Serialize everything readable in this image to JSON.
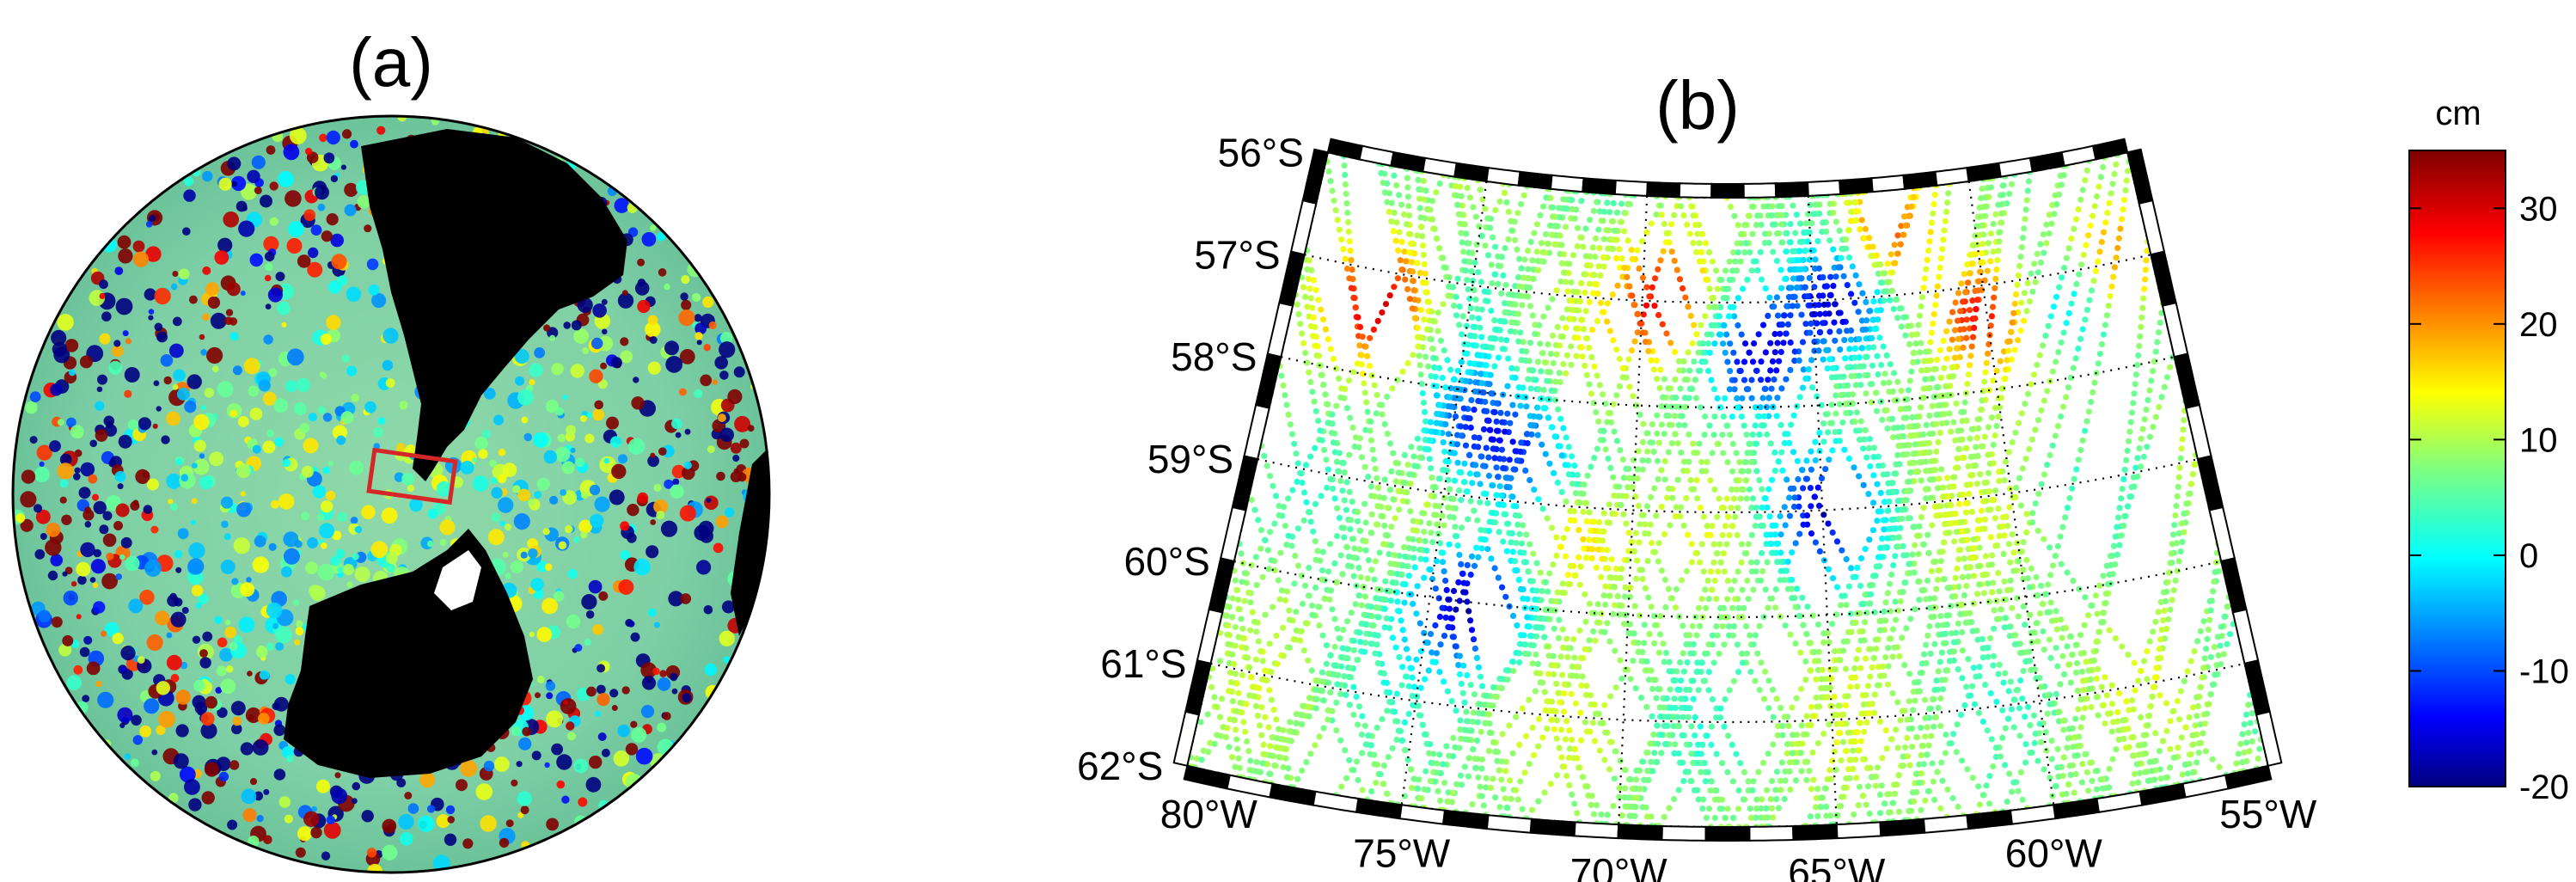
{
  "panels": {
    "a": {
      "label": "(a)"
    },
    "b": {
      "label": "(b)"
    }
  },
  "map_b": {
    "lon_range": [
      -80,
      -55
    ],
    "lat_range": [
      -62,
      -56
    ],
    "lon_ticks": [
      {
        "value": -80,
        "label": "80°W"
      },
      {
        "value": -75,
        "label": "75°W"
      },
      {
        "value": -70,
        "label": "70°W"
      },
      {
        "value": -65,
        "label": "65°W"
      },
      {
        "value": -60,
        "label": "60°W"
      },
      {
        "value": -55,
        "label": "55°W"
      }
    ],
    "lat_ticks": [
      {
        "value": -56,
        "label": "56°S"
      },
      {
        "value": -57,
        "label": "57°S"
      },
      {
        "value": -58,
        "label": "58°S"
      },
      {
        "value": -59,
        "label": "59°S"
      },
      {
        "value": -60,
        "label": "60°S"
      },
      {
        "value": -61,
        "label": "61°S"
      },
      {
        "value": -62,
        "label": "62°S"
      }
    ],
    "gridlines": "dotted",
    "colormap": "jet"
  },
  "colorbar": {
    "unit": "cm",
    "range": [
      -20,
      35
    ],
    "ticks": [
      {
        "value": 30,
        "label": "30"
      },
      {
        "value": 20,
        "label": "20"
      },
      {
        "value": 10,
        "label": "10"
      },
      {
        "value": 0,
        "label": "0"
      },
      {
        "value": -10,
        "label": "-10"
      },
      {
        "value": -20,
        "label": "-20"
      }
    ]
  },
  "anomaly_features": [
    {
      "lon": -77.5,
      "lat": -57.3,
      "value": 28
    },
    {
      "lon": -74.5,
      "lat": -58.3,
      "value": -8
    },
    {
      "lon": -73.0,
      "lat": -58.6,
      "value": -6
    },
    {
      "lon": -74.0,
      "lat": -60.0,
      "value": -18
    },
    {
      "lon": -71.5,
      "lat": -59.3,
      "value": 20
    },
    {
      "lon": -69.3,
      "lat": -57.0,
      "value": 30
    },
    {
      "lon": -66.5,
      "lat": -57.5,
      "value": -14
    },
    {
      "lon": -64.3,
      "lat": -57.0,
      "value": -19
    },
    {
      "lon": -65.0,
      "lat": -59.0,
      "value": -12
    },
    {
      "lon": -62.8,
      "lat": -56.4,
      "value": 24
    },
    {
      "lon": -60.3,
      "lat": -57.3,
      "value": 30
    },
    {
      "lon": -56.0,
      "lat": -57.0,
      "value": 22
    },
    {
      "lon": -57.5,
      "lat": -57.3,
      "value": -6
    },
    {
      "lon": -77.0,
      "lat": -60.8,
      "value": 5
    }
  ],
  "colors": {
    "frame_black": "#000000",
    "land": "#000000",
    "region_box": "#d62728"
  }
}
